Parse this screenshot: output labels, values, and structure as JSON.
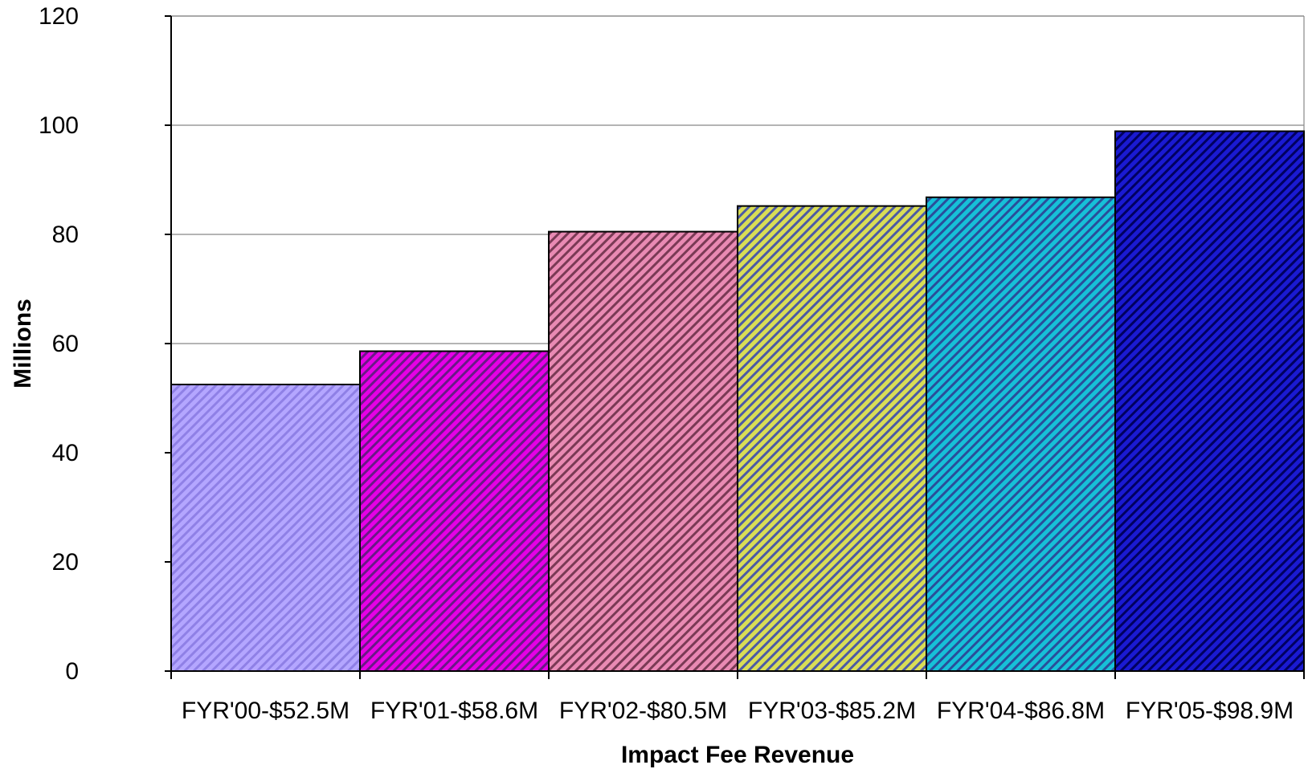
{
  "chart_data": {
    "type": "bar",
    "title": "",
    "xlabel": "Impact Fee Revenue",
    "ylabel": "Millions",
    "ylim": [
      0,
      120
    ],
    "yticks": [
      0,
      20,
      40,
      60,
      80,
      100,
      120
    ],
    "grid": true,
    "legend": "none",
    "categories": [
      "FYR'00-$52.5M",
      "FYR'01-$58.6M",
      "FYR'02-$80.5M",
      "FYR'03-$85.2M",
      "FYR'04-$86.8M",
      "FYR'05-$98.9M"
    ],
    "values": [
      52.5,
      58.6,
      80.5,
      85.2,
      86.8,
      98.9
    ],
    "bar_colors": [
      {
        "base": "#b4a6ff",
        "stripe": "#8f80e6"
      },
      {
        "base": "#e600e6",
        "stripe": "#6a1a86"
      },
      {
        "base": "#e98ab3",
        "stripe": "#7a3a55"
      },
      {
        "base": "#d9dd55",
        "stripe": "#4c5aa6"
      },
      {
        "base": "#16c0d8",
        "stripe": "#2a4e9a"
      },
      {
        "base": "#1a1ad2",
        "stripe": "#000060"
      }
    ]
  }
}
